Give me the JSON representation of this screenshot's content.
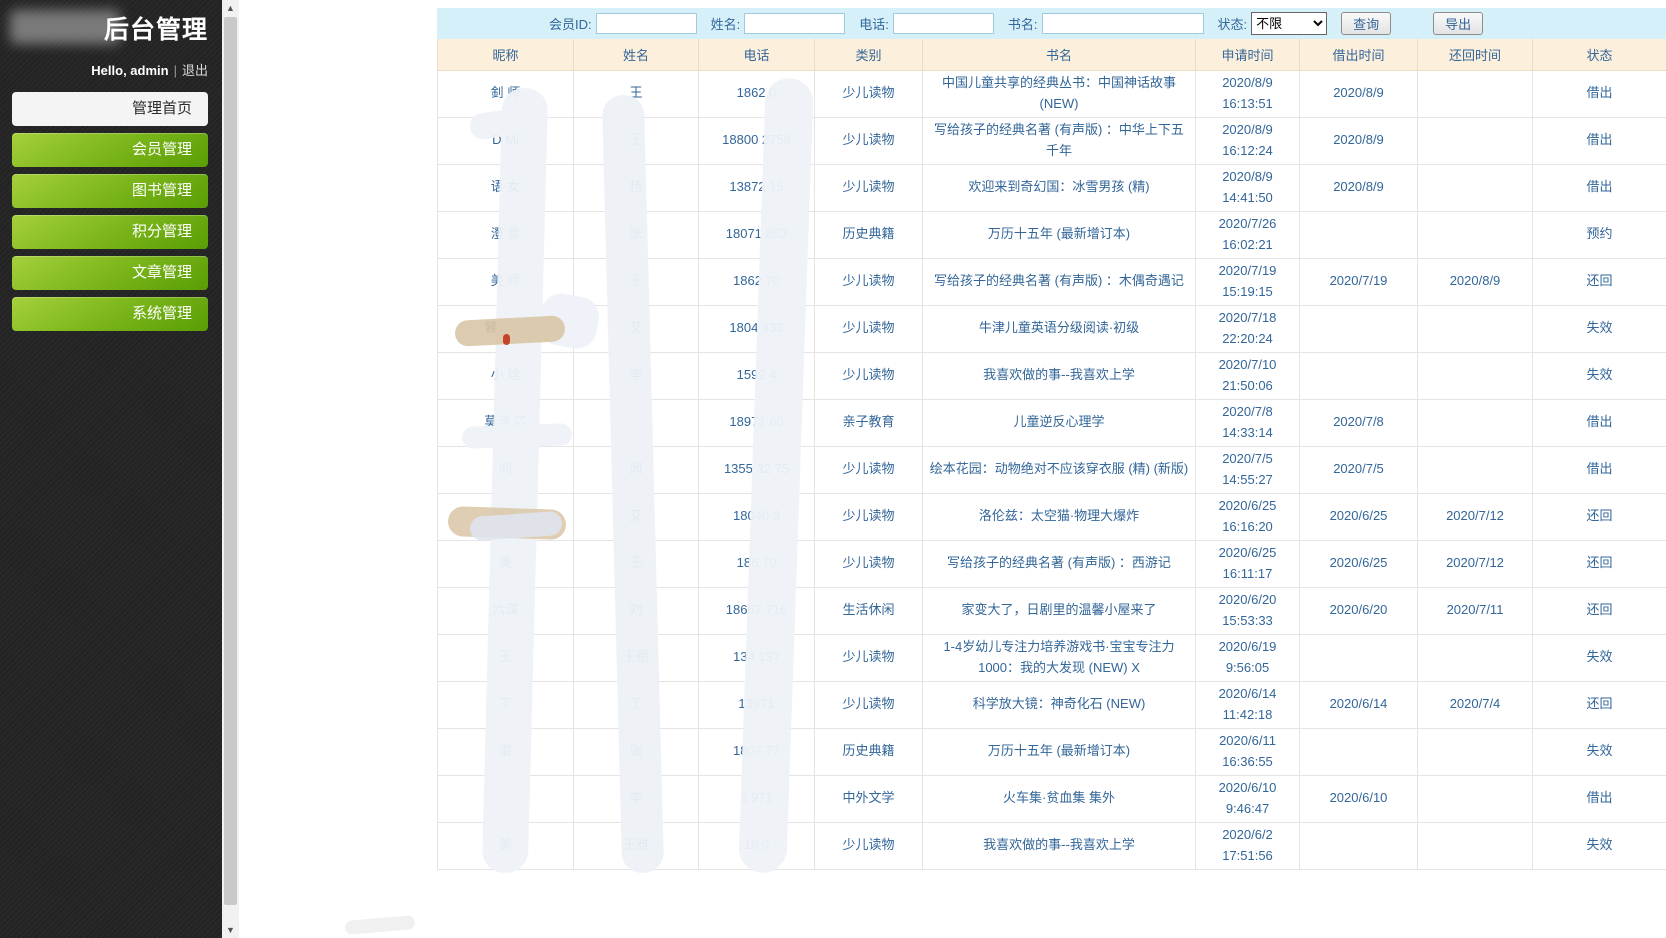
{
  "sidebar": {
    "title": "后台管理",
    "greeting": "Hello, admin",
    "logout": "退出",
    "menu": [
      {
        "label": "管理首页",
        "active": true
      },
      {
        "label": "会员管理",
        "active": false
      },
      {
        "label": "图书管理",
        "active": false
      },
      {
        "label": "积分管理",
        "active": false
      },
      {
        "label": "文章管理",
        "active": false
      },
      {
        "label": "系统管理",
        "active": false
      }
    ]
  },
  "filters": {
    "member_id_label": "会员ID:",
    "name_label": "姓名:",
    "phone_label": "电话:",
    "book_label": "书名:",
    "status_label": "状态:",
    "status_value": "不限",
    "query_button": "查询",
    "export_button": "导出",
    "inputs": {
      "member_id": "",
      "name": "",
      "phone": "",
      "book": ""
    }
  },
  "table": {
    "headers": [
      "昵称",
      "姓名",
      "电话",
      "类别",
      "书名",
      "申请时间",
      "借出时间",
      "还回时间",
      "状态"
    ],
    "rows": [
      {
        "nick": "釗 师",
        "name": "王",
        "phone": "1862 0",
        "category": "少儿读物",
        "book": "中国儿童共享的经典丛书：中国神话故事 (NEW)",
        "apply_time": "2020/8/9 16:13:51",
        "lend_time": "2020/8/9",
        "return_time": "",
        "status": "借出"
      },
      {
        "nick": "D Mi",
        "name": "王",
        "phone": "18800 2756",
        "category": "少儿读物",
        "book": "写给孩子的经典名著 (有声版) ：中华上下五千年",
        "apply_time": "2020/8/9 16:12:24",
        "lend_time": "2020/8/9",
        "return_time": "",
        "status": "借出"
      },
      {
        "nick": "语 女",
        "name": "杨",
        "phone": "13872 15",
        "category": "少儿读物",
        "book": "欢迎来到奇幻国：冰雪男孩 (精)",
        "apply_time": "2020/8/9 14:41:50",
        "lend_time": "2020/8/9",
        "return_time": "",
        "status": "借出"
      },
      {
        "nick": "澄 意",
        "name": "张",
        "phone": "18071 883",
        "category": "历史典籍",
        "book": "万历十五年 (最新增订本)",
        "apply_time": "2020/7/26 16:02:21",
        "lend_time": "",
        "return_time": "",
        "status": "预约"
      },
      {
        "nick": "美 师",
        "name": "王",
        "phone": "1862 70",
        "category": "少儿读物",
        "book": "写给孩子的经典名著 (有声版) ：木偶奇遇记",
        "apply_time": "2020/7/19 15:19:15",
        "lend_time": "2020/7/19",
        "return_time": "2020/8/9",
        "status": "还回"
      },
      {
        "nick": "饕 襄）",
        "name": "艾",
        "phone": "1804 433",
        "category": "少儿读物",
        "book": "牛津儿童英语分级阅读·初级",
        "apply_time": "2020/7/18 22:20:24",
        "lend_time": "",
        "return_time": "",
        "status": "失效"
      },
      {
        "nick": "小 琀",
        "name": "李",
        "phone": "1592 4",
        "category": "少儿读物",
        "book": "我喜欢做的事--我喜欢上学",
        "apply_time": "2020/7/10 21:50:06",
        "lend_time": "",
        "return_time": "",
        "status": "失效"
      },
      {
        "nick": "莫泮 芯",
        "name": "",
        "phone": "18971 60",
        "category": "亲子教育",
        "book": "儿童逆反心理学",
        "apply_time": "2020/7/8 14:33:14",
        "lend_time": "2020/7/8",
        "return_time": "",
        "status": "借出"
      },
      {
        "nick": "闻",
        "name": "闻",
        "phone": "1355 32 75",
        "category": "少儿读物",
        "book": "绘本花园：动物绝对不应该穿衣服 (精) (新版)",
        "apply_time": "2020/7/5 14:55:27",
        "lend_time": "2020/7/5",
        "return_time": "",
        "status": "借出"
      },
      {
        "nick": "饕饕",
        "name": "艾",
        "phone": "18040 3",
        "category": "少儿读物",
        "book": "洛伦兹：太空猫·物理大爆炸",
        "apply_time": "2020/6/25 16:16:20",
        "lend_time": "2020/6/25",
        "return_time": "2020/7/12",
        "status": "还回"
      },
      {
        "nick": "美",
        "name": "王",
        "phone": "186 70",
        "category": "少儿读物",
        "book": "写给孩子的经典名著 (有声版) ：西游记",
        "apply_time": "2020/6/25 16:11:17",
        "lend_time": "2020/6/25",
        "return_time": "2020/7/12",
        "status": "还回"
      },
      {
        "nick": "六谋",
        "name": "刘",
        "phone": "18667 716",
        "category": "生活休闲",
        "book": "家变大了，日剧里的温馨小屋来了",
        "apply_time": "2020/6/20 15:53:33",
        "lend_time": "2020/6/20",
        "return_time": "2020/7/11",
        "status": "还回"
      },
      {
        "nick": "王",
        "name": "王丽",
        "phone": "134 137",
        "category": "少儿读物",
        "book": "1-4岁幼儿专注力培养游戏书·宝宝专注力1000：我的大发现 (NEW) X",
        "apply_time": "2020/6/19 9:56:05",
        "lend_time": "",
        "return_time": "",
        "status": "失效"
      },
      {
        "nick": "丁",
        "name": "丁",
        "phone": "13971",
        "category": "少儿读物",
        "book": "科学放大镜：神奇化石 (NEW)",
        "apply_time": "2020/6/14 11:42:18",
        "lend_time": "2020/6/14",
        "return_time": "2020/7/4",
        "status": "还回"
      },
      {
        "nick": "潜",
        "name": "张",
        "phone": "1807 77",
        "category": "历史典籍",
        "book": "万历十五年 (最新增订本)",
        "apply_time": "2020/6/11 16:36:55",
        "lend_time": "",
        "return_time": "",
        "status": "失效"
      },
      {
        "nick": "",
        "name": "李",
        "phone": "1 971",
        "category": "中外文学",
        "book": "火车集·贫血集  集外",
        "apply_time": "2020/6/10 9:46:47",
        "lend_time": "2020/6/10",
        "return_time": "",
        "status": "借出"
      },
      {
        "nick": "美",
        "name": "王雅",
        "phone": "18 0",
        "category": "少儿读物",
        "book": "我喜欢做的事--我喜欢上学",
        "apply_time": "2020/6/2 17:51:56",
        "lend_time": "",
        "return_time": "",
        "status": "失效"
      }
    ]
  },
  "colors": {
    "sidebar_bg": "#262626",
    "menu_green_top": "#a6d03c",
    "menu_green_bottom": "#5a9d05",
    "filter_bar_bg": "#d5f0f9",
    "table_header_bg": "#fcf0dc",
    "table_text": "#336699"
  }
}
